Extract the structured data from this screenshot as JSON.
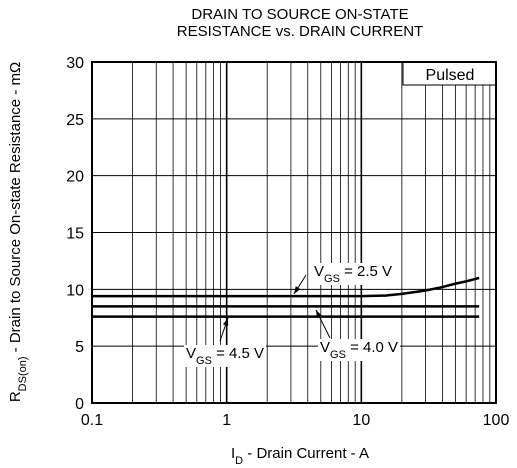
{
  "chart_data": {
    "type": "line",
    "title": [
      "DRAIN TO SOURCE ON-STATE",
      "RESISTANCE vs. DRAIN CURRENT"
    ],
    "x_label": [
      "I",
      "D",
      " - Drain Current - A"
    ],
    "y_label": [
      "R",
      "DS(on)",
      " - Drain to Source On-state Resistance - mΩ"
    ],
    "legend_text": "Pulsed",
    "legend_position": "upper right",
    "xscale": "log",
    "xlim": [
      0.1,
      100
    ],
    "xticks": [
      0.1,
      1,
      10,
      100
    ],
    "xminorticks": [
      0.2,
      0.3,
      0.4,
      0.5,
      0.6,
      0.7,
      0.8,
      0.9,
      2,
      3,
      4,
      5,
      6,
      7,
      8,
      9,
      20,
      30,
      40,
      50,
      60,
      70,
      80,
      90
    ],
    "ylim": [
      0,
      30
    ],
    "yticks": [
      0,
      5,
      10,
      15,
      20,
      25,
      30
    ],
    "grid": true,
    "color": "#000000",
    "series": [
      {
        "label": [
          "V",
          "GS",
          " = 2.5 V"
        ],
        "x": [
          0.1,
          1,
          10,
          15,
          20,
          30,
          40,
          50,
          60,
          75
        ],
        "values": [
          9.4,
          9.4,
          9.4,
          9.45,
          9.6,
          9.9,
          10.2,
          10.5,
          10.7,
          11.0
        ]
      },
      {
        "label": [
          "V",
          "GS",
          " = 4.0 V"
        ],
        "x": [
          0.1,
          75
        ],
        "values": [
          8.5,
          8.5
        ]
      },
      {
        "label": [
          "V",
          "GS",
          " = 4.5 V"
        ],
        "x": [
          0.1,
          75
        ],
        "values": [
          7.6,
          7.6
        ]
      }
    ]
  }
}
